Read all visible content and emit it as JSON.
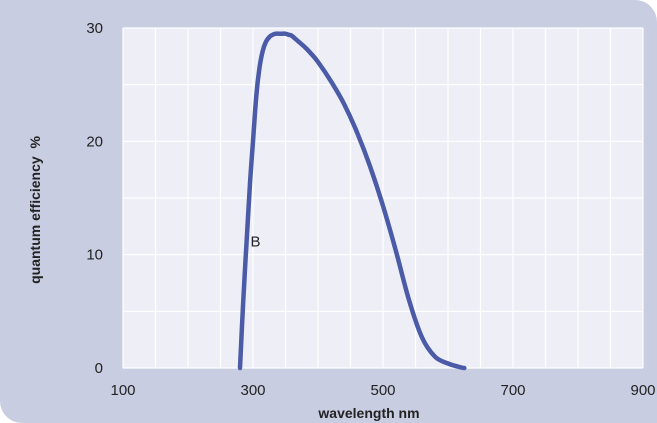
{
  "chart_data": {
    "type": "line",
    "title": "",
    "xlabel": "wavelength  nm",
    "ylabel": "quantum efficiency  %",
    "xlim": [
      100,
      900
    ],
    "ylim": [
      0,
      30
    ],
    "xticks": [
      100,
      300,
      500,
      700,
      900
    ],
    "yticks": [
      0,
      10,
      20,
      30
    ],
    "grid": true,
    "colors": {
      "background": "#c9cde2",
      "plot_area": "#eeeff6",
      "grid": "#ffffff",
      "line": "#4b5ba7"
    },
    "series": [
      {
        "label": "B",
        "label_at": [
          290,
          11
        ],
        "x": [
          280,
          285,
          290,
          295,
          300,
          305,
          310,
          315,
          320,
          325,
          330,
          335,
          340,
          345,
          350,
          355,
          360,
          370,
          380,
          390,
          400,
          420,
          440,
          460,
          480,
          500,
          520,
          540,
          560,
          580,
          600,
          620,
          625
        ],
        "y": [
          0,
          6,
          11,
          16,
          20,
          24,
          26.5,
          28,
          28.8,
          29.2,
          29.4,
          29.5,
          29.5,
          29.5,
          29.5,
          29.4,
          29.3,
          28.8,
          28.3,
          27.7,
          27.0,
          25.3,
          23.3,
          20.8,
          17.8,
          14.3,
          10.3,
          6.0,
          2.7,
          1.0,
          0.4,
          0.05,
          0
        ]
      }
    ]
  }
}
